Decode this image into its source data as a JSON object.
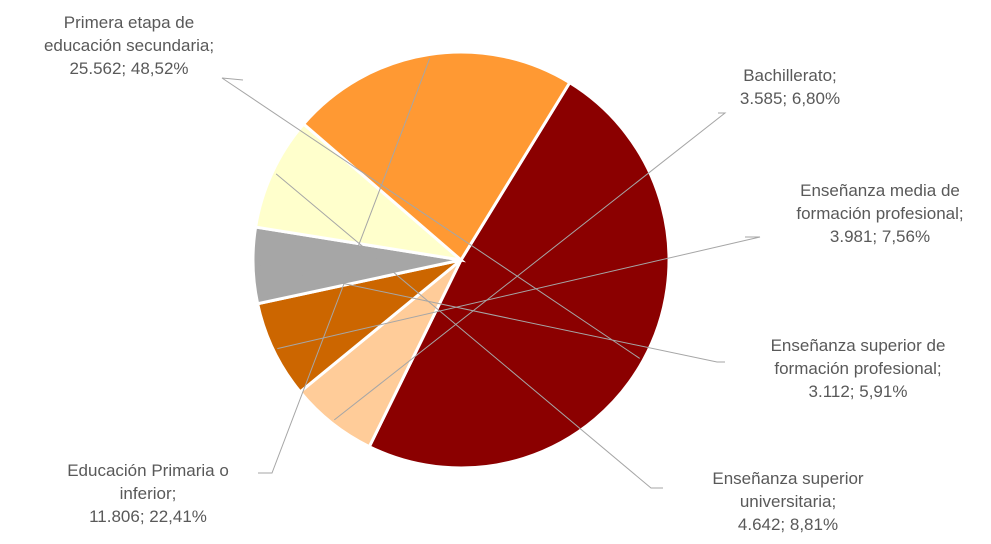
{
  "chart_data": {
    "type": "pie",
    "title": "",
    "legend": "none",
    "slices": [
      {
        "label": "Primera etapa de educación secundaria",
        "value": 25562,
        "percent": "48,52%",
        "color": "#8B0000",
        "label_lines": [
          "Primera etapa de",
          "educación secundaria;",
          "25.562; 48,52%"
        ]
      },
      {
        "label": "Bachillerato",
        "value": 3585,
        "percent": "6,80%",
        "color": "#FFCC99",
        "label_lines": [
          "Bachillerato;",
          "3.585; 6,80%"
        ]
      },
      {
        "label": "Enseñanza media de formación profesional",
        "value": 3981,
        "percent": "7,56%",
        "color": "#CC6600",
        "label_lines": [
          "Enseñanza media de",
          "formación profesional;",
          "3.981; 7,56%"
        ]
      },
      {
        "label": "Enseñanza superior de formación profesional",
        "value": 3112,
        "percent": "5,91%",
        "color": "#A6A6A6",
        "label_lines": [
          "Enseñanza superior de",
          "formación profesional;",
          "3.112; 5,91%"
        ]
      },
      {
        "label": "Enseñanza superior universitaria",
        "value": 4642,
        "percent": "8,81%",
        "color": "#FFFFCC",
        "label_lines": [
          "Enseñanza superior",
          "universitaria;",
          "4.642; 8,81%"
        ]
      },
      {
        "label": "Educación Primaria o inferior",
        "value": 11806,
        "percent": "22,41%",
        "color": "#FF9933",
        "label_lines": [
          "Educación Primaria o",
          "inferior;",
          "11.806; 22,41%"
        ]
      }
    ]
  }
}
